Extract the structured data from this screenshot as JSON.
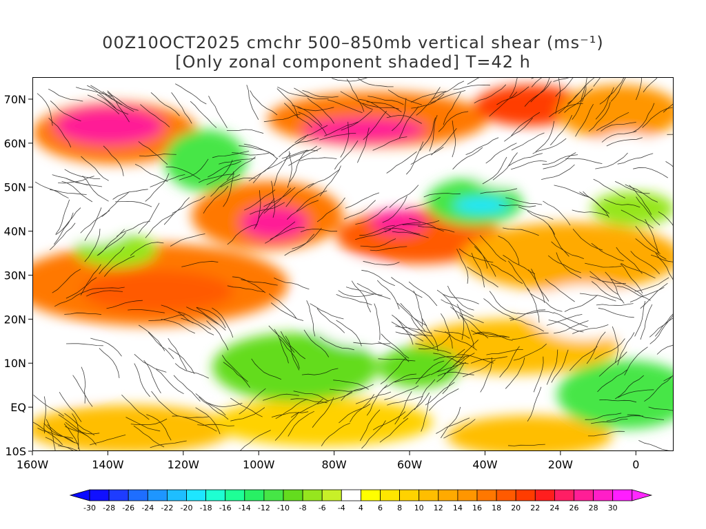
{
  "title": {
    "line1": "00Z10OCT2025 cmchr 500–850mb vertical shear (ms⁻¹)",
    "line2": "[Only zonal component shaded] T=42 h"
  },
  "map": {
    "lat_ticks": [
      "70N",
      "60N",
      "50N",
      "40N",
      "30N",
      "20N",
      "10N",
      "EQ",
      "10S"
    ],
    "lon_ticks": [
      "160W",
      "140W",
      "120W",
      "100W",
      "80W",
      "60W",
      "40W",
      "20W",
      "0"
    ],
    "lat_range": [
      -10,
      75
    ],
    "lon_range": [
      -160,
      10
    ]
  },
  "colorbar": {
    "labels": [
      "-30",
      "-28",
      "-26",
      "-24",
      "-22",
      "-20",
      "-18",
      "-16",
      "-14",
      "-12",
      "-10",
      "-8",
      "-6",
      "-4",
      "4",
      "6",
      "8",
      "10",
      "12",
      "14",
      "16",
      "18",
      "20",
      "22",
      "24",
      "26",
      "28",
      "30"
    ],
    "colors": [
      "#1010ff",
      "#1e3cff",
      "#1e6eff",
      "#1e96ff",
      "#1ebeff",
      "#1ee6ff",
      "#1effd2",
      "#1eff96",
      "#28f064",
      "#46e646",
      "#64dc1e",
      "#96e61e",
      "#c8f028",
      "#ffffff",
      "#ffff00",
      "#ffe600",
      "#ffd200",
      "#ffbe00",
      "#ffaa00",
      "#ff9600",
      "#ff7800",
      "#ff5a00",
      "#ff3c00",
      "#ff1e1e",
      "#ff1e64",
      "#ff1e96",
      "#ff1ec8",
      "#ff1eff"
    ],
    "underflow_color": "#0a0aff",
    "overflow_color": "#ff28ff"
  }
}
